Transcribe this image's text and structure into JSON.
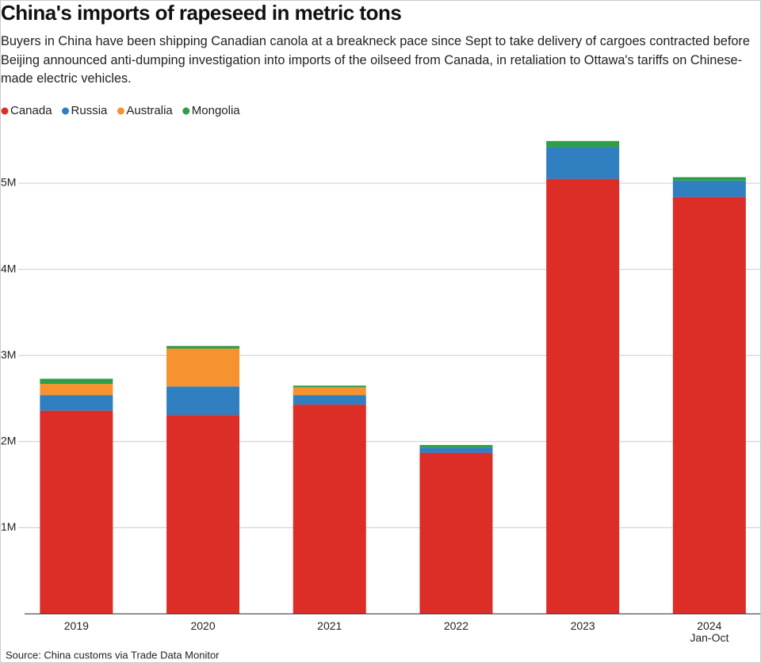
{
  "chart_data": {
    "type": "stacked_bar",
    "title": "China's imports of rapeseed in metric tons",
    "subtitle": "Buyers in China have been shipping Canadian canola at a breakneck pace since Sept to take delivery of cargoes contracted before Beijing announced anti-dumping investigation into imports of the oilseed from Canada, in retaliation to Ottawa's tariffs on Chinese-made electric vehicles.",
    "source": "Source: China customs via Trade Data Monitor",
    "categories": [
      "2019",
      "2020",
      "2021",
      "2022",
      "2023",
      "2024\nJan-Oct"
    ],
    "series": [
      {
        "name": "Canada",
        "color": "#dc2e27",
        "values": [
          2360000,
          2310000,
          2430000,
          1870000,
          5050000,
          4840000
        ]
      },
      {
        "name": "Russia",
        "color": "#2f7fc1",
        "values": [
          180000,
          330000,
          110000,
          60000,
          370000,
          190000
        ]
      },
      {
        "name": "Australia",
        "color": "#f6922f",
        "values": [
          130000,
          440000,
          90000,
          0,
          0,
          0
        ]
      },
      {
        "name": "Mongolia",
        "color": "#2e9e48",
        "values": [
          60000,
          30000,
          20000,
          30000,
          70000,
          40000
        ]
      }
    ],
    "ylim": [
      0,
      5700000
    ],
    "yticks": [
      {
        "value": 1000000,
        "label": "1M"
      },
      {
        "value": 2000000,
        "label": "2M"
      },
      {
        "value": 3000000,
        "label": "3M"
      },
      {
        "value": 4000000,
        "label": "4M"
      },
      {
        "value": 5000000,
        "label": "5M"
      }
    ],
    "grid": true
  }
}
